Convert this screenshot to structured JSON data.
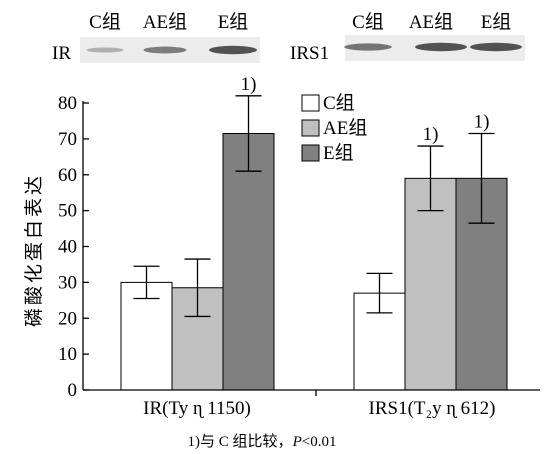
{
  "blots": [
    {
      "target": "IR",
      "lanes": [
        "C组",
        "AE组",
        "E组"
      ],
      "band_intensity": [
        0.35,
        0.65,
        0.9
      ]
    },
    {
      "target": "IRS1",
      "lanes": [
        "C组",
        "AE组",
        "E组"
      ],
      "band_intensity": [
        0.7,
        0.9,
        0.9
      ]
    }
  ],
  "chart_data": {
    "type": "bar",
    "title": "",
    "xlabel": "",
    "ylabel": "磷酸化蛋白表达",
    "ylim": [
      0,
      80
    ],
    "yticks": [
      0,
      10,
      20,
      30,
      40,
      50,
      60,
      70,
      80
    ],
    "grid": false,
    "legend_position": "top-center",
    "categories": [
      "IR(Ty ɳ 1150)",
      "IRS1(T₂y ɳ 612)"
    ],
    "series": [
      {
        "name": "C组",
        "color": "#ffffff",
        "values": [
          30,
          27
        ],
        "errors": [
          4.5,
          5.5
        ]
      },
      {
        "name": "AE组",
        "color": "#c0c0c0",
        "values": [
          28.5,
          59
        ],
        "errors": [
          8,
          9
        ]
      },
      {
        "name": "E组",
        "color": "#808080",
        "values": [
          71.5,
          59
        ],
        "errors": [
          10.5,
          12.5
        ]
      }
    ],
    "significance": [
      {
        "category": 0,
        "series": 2,
        "label": "1)"
      },
      {
        "category": 1,
        "series": 1,
        "label": "1)"
      },
      {
        "category": 1,
        "series": 2,
        "label": "1)"
      }
    ],
    "footnote": "1)与 C 组比较，P<0.01"
  }
}
